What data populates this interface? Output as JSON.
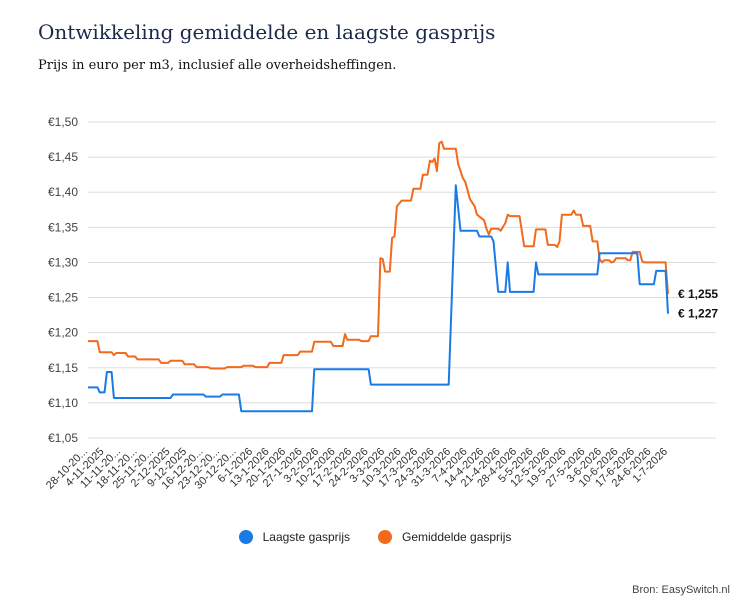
{
  "title": "Ontwikkeling gemiddelde en laagste gasprijs",
  "subtitle": "Prijs in euro per m3, inclusief alle overheidsheffingen.",
  "source": "Bron: EasySwitch.nl",
  "colors": {
    "laagste": "#1a7ae6",
    "gemiddelde": "#f26a1b",
    "grid": "#dddddd"
  },
  "chart_data": {
    "type": "line",
    "ylim": [
      1.05,
      1.5
    ],
    "yticks": [
      1.05,
      1.1,
      1.15,
      1.2,
      1.25,
      1.3,
      1.35,
      1.4,
      1.45,
      1.5
    ],
    "ytick_labels": [
      "€1,05",
      "€1,10",
      "€1,15",
      "€1,20",
      "€1,25",
      "€1,30",
      "€1,35",
      "€1,40",
      "€1,45",
      "€1,50"
    ],
    "x_start": "2025-10-28",
    "x_end": "2026-07-01",
    "xtick_dates": [
      "2025-10-28",
      "2025-11-04",
      "2025-11-11",
      "2025-11-18",
      "2025-11-25",
      "2025-12-02",
      "2025-12-09",
      "2025-12-16",
      "2025-12-23",
      "2025-12-30",
      "2026-01-06",
      "2026-01-13",
      "2026-01-20",
      "2026-01-27",
      "2026-02-03",
      "2026-02-10",
      "2026-02-17",
      "2026-02-24",
      "2026-03-03",
      "2026-03-10",
      "2026-03-17",
      "2026-03-24",
      "2026-03-31",
      "2026-04-07",
      "2026-04-14",
      "2026-04-21",
      "2026-04-28",
      "2026-05-05",
      "2026-05-12",
      "2026-05-19",
      "2026-05-27",
      "2026-06-03",
      "2026-06-10",
      "2026-06-17",
      "2026-06-24",
      "2026-07-01"
    ],
    "xtick_labels": [
      "28-10-20...",
      "4-11-2025",
      "11-11-20...",
      "18-11-20...",
      "25-11-20...",
      "2-12-2025",
      "9-12-2025",
      "16-12-20...",
      "23-12-20...",
      "30-12-20...",
      "6-1-2026",
      "13-1-2026",
      "20-1-2026",
      "27-1-2026",
      "3-2-2026",
      "10-2-2026",
      "17-2-2026",
      "24-2-2026",
      "3-3-2026",
      "10-3-2026",
      "17-3-2026",
      "24-3-2026",
      "31-3-2026",
      "7-4-2026",
      "14-4-2026",
      "21-4-2026",
      "28-4-2026",
      "5-5-2026",
      "12-5-2026",
      "19-5-2026",
      "27-5-2026",
      "3-6-2026",
      "10-6-2026",
      "17-6-2026",
      "24-6-2026",
      "1-7-2026"
    ],
    "series": [
      {
        "name": "Laagste gasprijs",
        "end_label": "€ 1,227",
        "points": [
          [
            "2025-10-28",
            1.122
          ],
          [
            "2025-11-01",
            1.122
          ],
          [
            "2025-11-02",
            1.115
          ],
          [
            "2025-11-04",
            1.115
          ],
          [
            "2025-11-05",
            1.144
          ],
          [
            "2025-11-07",
            1.144
          ],
          [
            "2025-11-08",
            1.107
          ],
          [
            "2025-12-02",
            1.107
          ],
          [
            "2025-12-03",
            1.112
          ],
          [
            "2025-12-16",
            1.112
          ],
          [
            "2025-12-17",
            1.109
          ],
          [
            "2025-12-23",
            1.109
          ],
          [
            "2025-12-24",
            1.112
          ],
          [
            "2025-12-31",
            1.112
          ],
          [
            "2026-01-01",
            1.088
          ],
          [
            "2026-01-31",
            1.088
          ],
          [
            "2026-02-01",
            1.148
          ],
          [
            "2026-02-24",
            1.148
          ],
          [
            "2026-02-25",
            1.126
          ],
          [
            "2026-03-30",
            1.126
          ],
          [
            "2026-04-02",
            1.41
          ],
          [
            "2026-04-04",
            1.345
          ],
          [
            "2026-04-11",
            1.345
          ],
          [
            "2026-04-12",
            1.337
          ],
          [
            "2026-04-17",
            1.337
          ],
          [
            "2026-04-18",
            1.33
          ],
          [
            "2026-04-20",
            1.258
          ],
          [
            "2026-04-23",
            1.258
          ],
          [
            "2026-04-24",
            1.3
          ],
          [
            "2026-04-25",
            1.258
          ],
          [
            "2026-05-05",
            1.258
          ],
          [
            "2026-05-06",
            1.3
          ],
          [
            "2026-05-07",
            1.283
          ],
          [
            "2026-06-01",
            1.283
          ],
          [
            "2026-06-02",
            1.313
          ],
          [
            "2026-06-18",
            1.313
          ],
          [
            "2026-06-19",
            1.269
          ],
          [
            "2026-06-25",
            1.269
          ],
          [
            "2026-06-26",
            1.288
          ],
          [
            "2026-06-30",
            1.288
          ],
          [
            "2026-07-01",
            1.227
          ]
        ]
      },
      {
        "name": "Gemiddelde gasprijs",
        "end_label": "€ 1,255",
        "points": [
          [
            "2025-10-28",
            1.188
          ],
          [
            "2025-11-01",
            1.188
          ],
          [
            "2025-11-02",
            1.172
          ],
          [
            "2025-11-07",
            1.172
          ],
          [
            "2025-11-08",
            1.168
          ],
          [
            "2025-11-09",
            1.171
          ],
          [
            "2025-11-13",
            1.171
          ],
          [
            "2025-11-14",
            1.166
          ],
          [
            "2025-11-17",
            1.166
          ],
          [
            "2025-11-18",
            1.162
          ],
          [
            "2025-11-27",
            1.162
          ],
          [
            "2025-11-28",
            1.157
          ],
          [
            "2025-12-01",
            1.157
          ],
          [
            "2025-12-02",
            1.16
          ],
          [
            "2025-12-07",
            1.16
          ],
          [
            "2025-12-08",
            1.155
          ],
          [
            "2025-12-12",
            1.155
          ],
          [
            "2025-12-13",
            1.151
          ],
          [
            "2025-12-18",
            1.151
          ],
          [
            "2025-12-19",
            1.149
          ],
          [
            "2025-12-25",
            1.149
          ],
          [
            "2025-12-26",
            1.151
          ],
          [
            "2026-01-01",
            1.151
          ],
          [
            "2026-01-02",
            1.153
          ],
          [
            "2026-01-06",
            1.153
          ],
          [
            "2026-01-07",
            1.151
          ],
          [
            "2026-01-12",
            1.151
          ],
          [
            "2026-01-13",
            1.157
          ],
          [
            "2026-01-18",
            1.157
          ],
          [
            "2026-01-19",
            1.168
          ],
          [
            "2026-01-25",
            1.168
          ],
          [
            "2026-01-26",
            1.173
          ],
          [
            "2026-01-31",
            1.173
          ],
          [
            "2026-02-01",
            1.187
          ],
          [
            "2026-02-08",
            1.187
          ],
          [
            "2026-02-09",
            1.181
          ],
          [
            "2026-02-13",
            1.181
          ],
          [
            "2026-02-14",
            1.198
          ],
          [
            "2026-02-15",
            1.19
          ],
          [
            "2026-02-20",
            1.19
          ],
          [
            "2026-02-21",
            1.188
          ],
          [
            "2026-02-24",
            1.188
          ],
          [
            "2026-02-25",
            1.195
          ],
          [
            "2026-02-28",
            1.195
          ],
          [
            "2026-03-01",
            1.306
          ],
          [
            "2026-03-02",
            1.305
          ],
          [
            "2026-03-03",
            1.287
          ],
          [
            "2026-03-05",
            1.287
          ],
          [
            "2026-03-06",
            1.335
          ],
          [
            "2026-03-07",
            1.337
          ],
          [
            "2026-03-08",
            1.38
          ],
          [
            "2026-03-10",
            1.388
          ],
          [
            "2026-03-14",
            1.388
          ],
          [
            "2026-03-15",
            1.405
          ],
          [
            "2026-03-18",
            1.405
          ],
          [
            "2026-03-19",
            1.425
          ],
          [
            "2026-03-21",
            1.425
          ],
          [
            "2026-03-22",
            1.445
          ],
          [
            "2026-03-23",
            1.443
          ],
          [
            "2026-03-24",
            1.448
          ],
          [
            "2026-03-25",
            1.43
          ],
          [
            "2026-03-26",
            1.47
          ],
          [
            "2026-03-27",
            1.472
          ],
          [
            "2026-03-28",
            1.462
          ],
          [
            "2026-04-02",
            1.462
          ],
          [
            "2026-04-03",
            1.44
          ],
          [
            "2026-04-05",
            1.42
          ],
          [
            "2026-04-06",
            1.415
          ],
          [
            "2026-04-08",
            1.39
          ],
          [
            "2026-04-10",
            1.38
          ],
          [
            "2026-04-11",
            1.368
          ],
          [
            "2026-04-14",
            1.36
          ],
          [
            "2026-04-15",
            1.348
          ],
          [
            "2026-04-16",
            1.34
          ],
          [
            "2026-04-17",
            1.348
          ],
          [
            "2026-04-20",
            1.348
          ],
          [
            "2026-04-21",
            1.345
          ],
          [
            "2026-04-23",
            1.356
          ],
          [
            "2026-04-24",
            1.368
          ],
          [
            "2026-04-25",
            1.366
          ],
          [
            "2026-04-29",
            1.366
          ],
          [
            "2026-04-30",
            1.345
          ],
          [
            "2026-05-01",
            1.323
          ],
          [
            "2026-05-05",
            1.323
          ],
          [
            "2026-05-06",
            1.347
          ],
          [
            "2026-05-10",
            1.347
          ],
          [
            "2026-05-11",
            1.325
          ],
          [
            "2026-05-14",
            1.325
          ],
          [
            "2026-05-15",
            1.322
          ],
          [
            "2026-05-16",
            1.33
          ],
          [
            "2026-05-17",
            1.368
          ],
          [
            "2026-05-21",
            1.368
          ],
          [
            "2026-05-22",
            1.374
          ],
          [
            "2026-05-23",
            1.368
          ],
          [
            "2026-05-25",
            1.368
          ],
          [
            "2026-05-26",
            1.352
          ],
          [
            "2026-05-29",
            1.352
          ],
          [
            "2026-05-30",
            1.33
          ],
          [
            "2026-06-01",
            1.33
          ],
          [
            "2026-06-02",
            1.305
          ],
          [
            "2026-06-03",
            1.3
          ],
          [
            "2026-06-04",
            1.303
          ],
          [
            "2026-06-06",
            1.303
          ],
          [
            "2026-06-07",
            1.3
          ],
          [
            "2026-06-08",
            1.301
          ],
          [
            "2026-06-09",
            1.306
          ],
          [
            "2026-06-13",
            1.306
          ],
          [
            "2026-06-14",
            1.303
          ],
          [
            "2026-06-15",
            1.303
          ],
          [
            "2026-06-16",
            1.315
          ],
          [
            "2026-06-19",
            1.315
          ],
          [
            "2026-06-20",
            1.302
          ],
          [
            "2026-06-21",
            1.3
          ],
          [
            "2026-06-30",
            1.3
          ],
          [
            "2026-07-01",
            1.255
          ]
        ]
      }
    ]
  },
  "legend": {
    "laagste": "Laagste gasprijs",
    "gemiddelde": "Gemiddelde gasprijs"
  }
}
